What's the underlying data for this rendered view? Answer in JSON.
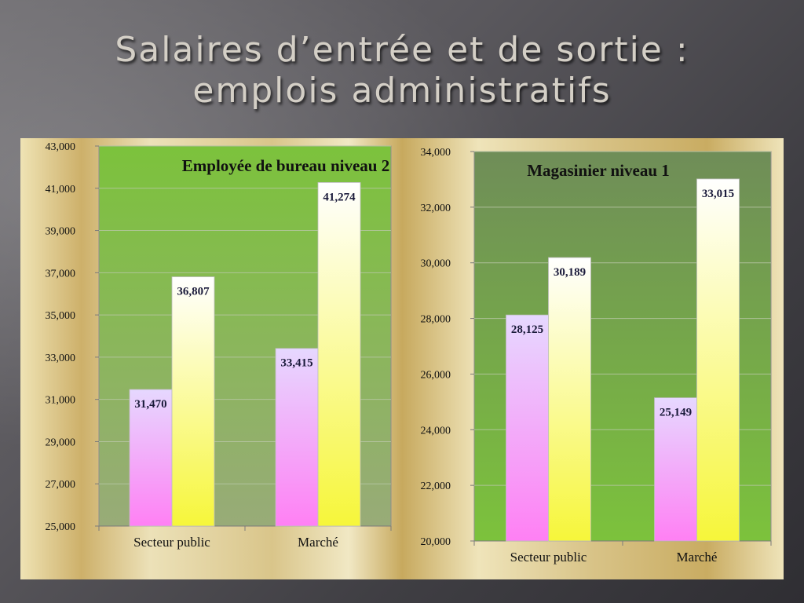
{
  "slide": {
    "title_line1": "Salaires d’entrée et de sortie :",
    "title_line2": "emplois administratifs"
  },
  "chart_data": [
    {
      "type": "bar",
      "title": "Employée de bureau niveau 2",
      "categories": [
        "Secteur public",
        "Marché"
      ],
      "series": [
        {
          "values": [
            31470,
            33415
          ],
          "labels": [
            "31,470",
            "33,415"
          ]
        },
        {
          "values": [
            36807,
            41274
          ],
          "labels": [
            "36,807",
            "41,274"
          ]
        }
      ],
      "ylim": [
        25000,
        43000
      ],
      "yticks": [
        25000,
        27000,
        29000,
        31000,
        33000,
        35000,
        37000,
        39000,
        41000,
        43000
      ],
      "ytick_labels": [
        "25,000",
        "27,000",
        "29,000",
        "31,000",
        "33,000",
        "35,000",
        "37,000",
        "39,000",
        "41,000",
        "43,000"
      ],
      "grid": true,
      "colors": {
        "series1_top": "#e6d8ff",
        "series1_bottom": "#ff80f4",
        "series2_top": "#ffffff",
        "series2_bottom": "#f6f63a",
        "plot_top": "#7cc23c",
        "plot_bottom": "#98ab78"
      }
    },
    {
      "type": "bar",
      "title": "Magasinier niveau 1",
      "categories": [
        "Secteur public",
        "Marché"
      ],
      "series": [
        {
          "values": [
            28125,
            25149
          ],
          "labels": [
            "28,125",
            "25,149"
          ]
        },
        {
          "values": [
            30189,
            33015
          ],
          "labels": [
            "30,189",
            "33,015"
          ]
        }
      ],
      "ylim": [
        20000,
        34000
      ],
      "yticks": [
        20000,
        22000,
        24000,
        26000,
        28000,
        30000,
        32000,
        34000
      ],
      "ytick_labels": [
        "20,000",
        "22,000",
        "24,000",
        "26,000",
        "28,000",
        "30,000",
        "32,000",
        "34,000"
      ],
      "grid": true,
      "colors": {
        "series1_top": "#e6d8ff",
        "series1_bottom": "#ff80f4",
        "series2_top": "#ffffff",
        "series2_bottom": "#f6f63a",
        "plot_top": "#6f8d58",
        "plot_bottom": "#7cc23c"
      }
    }
  ]
}
